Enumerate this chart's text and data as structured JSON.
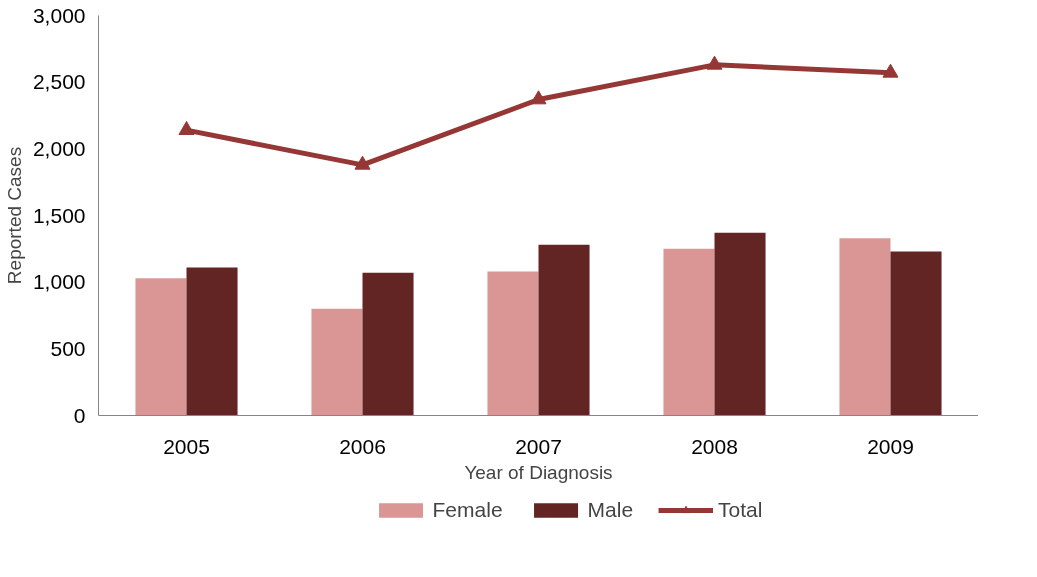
{
  "chart_data": {
    "type": "bar",
    "xlabel": "Year of Diagnosis",
    "ylabel": "Reported Cases",
    "categories": [
      "2005",
      "2006",
      "2007",
      "2008",
      "2009"
    ],
    "series": [
      {
        "name": "Female",
        "color": "#d99694",
        "values": [
          1030,
          800,
          1080,
          1250,
          1330
        ]
      },
      {
        "name": "Male",
        "color": "#632523",
        "values": [
          1110,
          1070,
          1280,
          1370,
          1230
        ]
      },
      {
        "name": "Total",
        "type": "line",
        "color": "#953735",
        "marker": "triangle",
        "line_style": "solid",
        "values": [
          2140,
          1880,
          2370,
          2630,
          2570
        ]
      }
    ],
    "ylim": [
      0,
      3000
    ],
    "yticks": [
      {
        "value": 0,
        "label": "0"
      },
      {
        "value": 500,
        "label": "500"
      },
      {
        "value": 1000,
        "label": "1,000"
      },
      {
        "value": 1500,
        "label": "1,500"
      },
      {
        "value": 2000,
        "label": "2,000"
      },
      {
        "value": 2500,
        "label": "2,500"
      },
      {
        "value": 3000,
        "label": "3,000"
      }
    ],
    "grid": false,
    "legend": "bottom"
  }
}
